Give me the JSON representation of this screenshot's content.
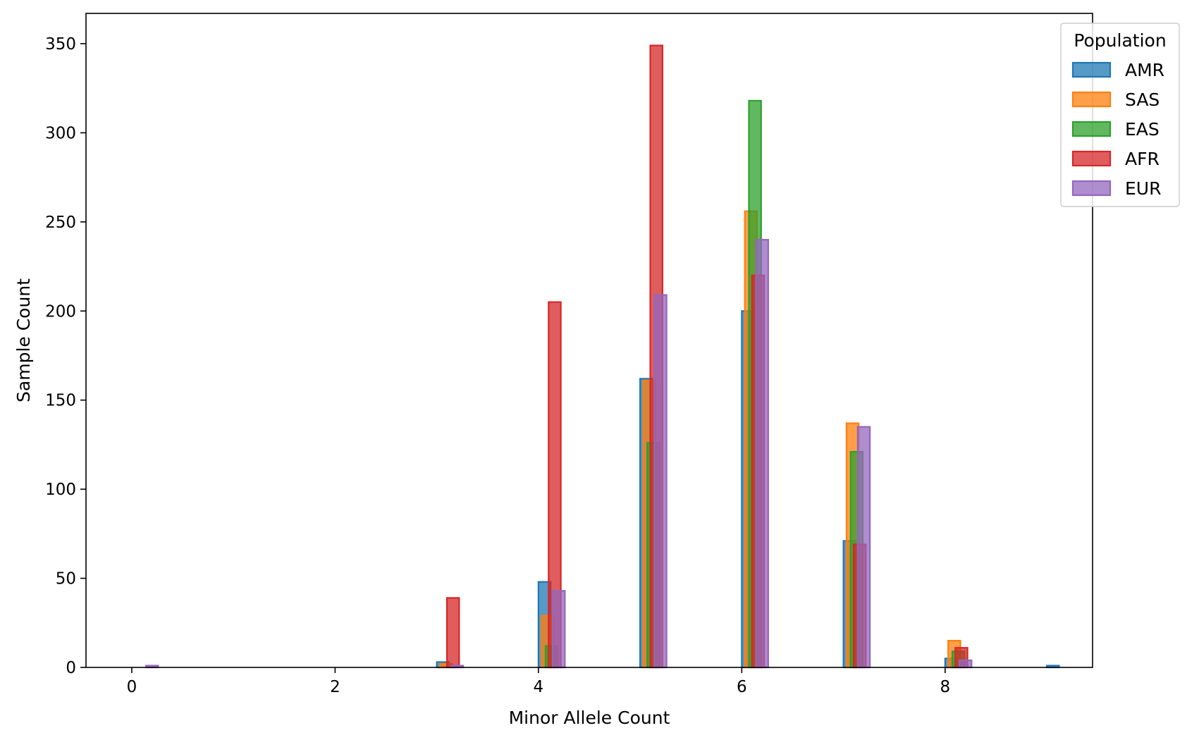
{
  "colors": {
    "AMR": "#1f77b4",
    "SAS": "#ff7f0e",
    "EAS": "#2ca02c",
    "AFR": "#d62728",
    "EUR": "#9467bd"
  },
  "chart_data": {
    "type": "bar",
    "subtype": "overlapping histogram (step, filled, alpha 0.75)",
    "title": "",
    "xlabel": "Minor Allele Count",
    "ylabel": "Sample Count",
    "xlim": [
      -0.45,
      9.45
    ],
    "ylim": [
      0,
      367
    ],
    "xticks": [
      0,
      2,
      4,
      6,
      8
    ],
    "yticks": [
      0,
      50,
      100,
      150,
      200,
      250,
      300,
      350
    ],
    "grid": false,
    "legend": {
      "title": "Population",
      "position": "top-right"
    },
    "series": [
      {
        "name": "AMR",
        "bin_offset": 0.0,
        "points": [
          [
            3,
            3
          ],
          [
            4,
            48
          ],
          [
            5,
            162
          ],
          [
            6,
            200
          ],
          [
            7,
            71
          ],
          [
            8,
            5
          ],
          [
            9,
            1
          ]
        ]
      },
      {
        "name": "SAS",
        "bin_offset": 0.03,
        "points": [
          [
            3,
            2
          ],
          [
            4,
            29
          ],
          [
            5,
            161
          ],
          [
            6,
            256
          ],
          [
            7,
            137
          ],
          [
            8,
            15
          ]
        ]
      },
      {
        "name": "EAS",
        "bin_offset": 0.07,
        "points": [
          [
            4,
            12
          ],
          [
            5,
            126
          ],
          [
            6,
            318
          ],
          [
            7,
            121
          ],
          [
            8,
            9
          ]
        ]
      },
      {
        "name": "AFR",
        "bin_offset": 0.1,
        "points": [
          [
            3,
            39
          ],
          [
            4,
            205
          ],
          [
            5,
            349
          ],
          [
            6,
            220
          ],
          [
            7,
            69
          ],
          [
            8,
            11
          ]
        ]
      },
      {
        "name": "EUR",
        "bin_offset": 0.14,
        "points": [
          [
            0,
            1
          ],
          [
            3,
            1
          ],
          [
            4,
            43
          ],
          [
            5,
            209
          ],
          [
            6,
            240
          ],
          [
            7,
            135
          ],
          [
            8,
            4
          ]
        ]
      }
    ]
  }
}
